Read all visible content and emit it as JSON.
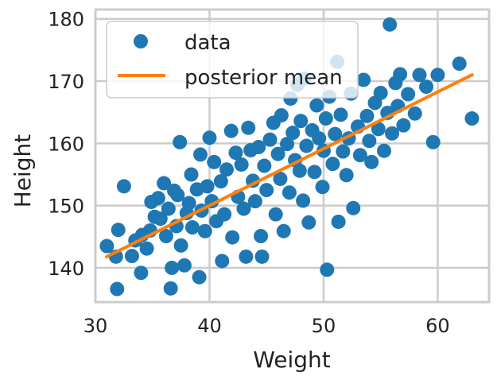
{
  "chart_data": {
    "type": "scatter",
    "xlabel": "Weight",
    "ylabel": "Height",
    "xlim": [
      30,
      64.5
    ],
    "ylim": [
      134.5,
      181.5
    ],
    "xticks": [
      30,
      40,
      50,
      60
    ],
    "yticks": [
      140,
      150,
      160,
      170,
      180
    ],
    "grid": true,
    "legend": {
      "placement": "upper-left",
      "entries": [
        {
          "label": "data",
          "marker": "circle"
        },
        {
          "label": "posterior mean",
          "marker": "line"
        }
      ]
    },
    "colors": {
      "data": "#1f77b4",
      "line": "#ff7f0e",
      "grid": "#cccccc",
      "frame": "#cccccc"
    },
    "series": [
      {
        "name": "data",
        "type": "scatter",
        "points": [
          [
            31.0,
            143.5
          ],
          [
            31.8,
            141.8
          ],
          [
            31.9,
            136.6
          ],
          [
            32.0,
            146.1
          ],
          [
            32.5,
            153.1
          ],
          [
            33.2,
            141.9
          ],
          [
            33.5,
            144.4
          ],
          [
            34.0,
            139.2
          ],
          [
            34.1,
            145.3
          ],
          [
            34.5,
            143.1
          ],
          [
            34.8,
            146.0
          ],
          [
            34.9,
            150.6
          ],
          [
            35.2,
            148.2
          ],
          [
            35.5,
            151.2
          ],
          [
            35.7,
            147.9
          ],
          [
            36.0,
            153.6
          ],
          [
            36.2,
            145.1
          ],
          [
            36.4,
            149.5
          ],
          [
            36.6,
            136.7
          ],
          [
            36.7,
            140.0
          ],
          [
            36.9,
            152.4
          ],
          [
            37.1,
            146.7
          ],
          [
            37.2,
            151.7
          ],
          [
            37.4,
            160.2
          ],
          [
            37.5,
            143.6
          ],
          [
            37.8,
            140.4
          ],
          [
            38.0,
            148.8
          ],
          [
            38.2,
            150.4
          ],
          [
            38.4,
            155.0
          ],
          [
            38.5,
            146.5
          ],
          [
            38.9,
            152.6
          ],
          [
            39.1,
            138.5
          ],
          [
            39.2,
            158.2
          ],
          [
            39.3,
            149.2
          ],
          [
            39.6,
            145.9
          ],
          [
            39.8,
            153.1
          ],
          [
            40.0,
            160.9
          ],
          [
            40.2,
            150.7
          ],
          [
            40.4,
            157.0
          ],
          [
            40.6,
            147.5
          ],
          [
            41.0,
            153.9
          ],
          [
            41.1,
            141.1
          ],
          [
            41.3,
            148.6
          ],
          [
            41.5,
            155.8
          ],
          [
            41.9,
            162.0
          ],
          [
            42.0,
            144.9
          ],
          [
            42.3,
            158.5
          ],
          [
            42.5,
            151.4
          ],
          [
            42.8,
            156.6
          ],
          [
            43.0,
            149.5
          ],
          [
            43.2,
            141.8
          ],
          [
            43.4,
            162.5
          ],
          [
            43.6,
            158.9
          ],
          [
            43.8,
            154.0
          ],
          [
            44.0,
            150.7
          ],
          [
            44.3,
            159.4
          ],
          [
            44.5,
            145.1
          ],
          [
            44.6,
            141.8
          ],
          [
            44.8,
            156.4
          ],
          [
            45.0,
            152.5
          ],
          [
            45.3,
            160.6
          ],
          [
            45.6,
            163.3
          ],
          [
            45.8,
            148.6
          ],
          [
            46.0,
            158.3
          ],
          [
            46.2,
            154.3
          ],
          [
            46.3,
            164.5
          ],
          [
            46.5,
            145.9
          ],
          [
            46.8,
            159.9
          ],
          [
            47.0,
            152.1
          ],
          [
            47.1,
            167.2
          ],
          [
            47.3,
            161.7
          ],
          [
            47.5,
            157.3
          ],
          [
            47.7,
            169.4
          ],
          [
            47.9,
            155.6
          ],
          [
            48.0,
            163.6
          ],
          [
            48.2,
            150.8
          ],
          [
            48.3,
            170.4
          ],
          [
            48.5,
            159.6
          ],
          [
            48.7,
            147.3
          ],
          [
            49.0,
            162.1
          ],
          [
            49.2,
            155.4
          ],
          [
            49.4,
            166.1
          ],
          [
            49.6,
            160.8
          ],
          [
            49.9,
            153.0
          ],
          [
            50.0,
            158.8
          ],
          [
            50.2,
            164.0
          ],
          [
            50.3,
            139.7
          ],
          [
            50.5,
            167.5
          ],
          [
            50.8,
            156.7
          ],
          [
            51.0,
            161.5
          ],
          [
            51.2,
            173.1
          ],
          [
            51.3,
            147.4
          ],
          [
            51.5,
            164.6
          ],
          [
            51.7,
            158.7
          ],
          [
            52.0,
            154.9
          ],
          [
            52.2,
            160.8
          ],
          [
            52.4,
            168.0
          ],
          [
            52.6,
            149.6
          ],
          [
            53.0,
            162.7
          ],
          [
            53.2,
            158.1
          ],
          [
            53.5,
            170.2
          ],
          [
            53.8,
            164.4
          ],
          [
            54.0,
            160.4
          ],
          [
            54.2,
            157.0
          ],
          [
            54.5,
            166.5
          ],
          [
            54.8,
            162.3
          ],
          [
            55.0,
            168.1
          ],
          [
            55.3,
            158.8
          ],
          [
            55.6,
            164.9
          ],
          [
            55.8,
            179.1
          ],
          [
            56.0,
            161.6
          ],
          [
            56.3,
            169.7
          ],
          [
            56.5,
            166.0
          ],
          [
            56.7,
            171.1
          ],
          [
            57.0,
            162.9
          ],
          [
            57.4,
            167.9
          ],
          [
            58.0,
            164.8
          ],
          [
            58.4,
            171.0
          ],
          [
            59.0,
            169.1
          ],
          [
            59.6,
            160.2
          ],
          [
            60.0,
            171.0
          ],
          [
            61.9,
            172.8
          ],
          [
            63.0,
            164.0
          ]
        ]
      },
      {
        "name": "posterior mean",
        "type": "line",
        "points": [
          [
            31.0,
            141.8
          ],
          [
            63.0,
            171.0
          ]
        ]
      }
    ]
  }
}
